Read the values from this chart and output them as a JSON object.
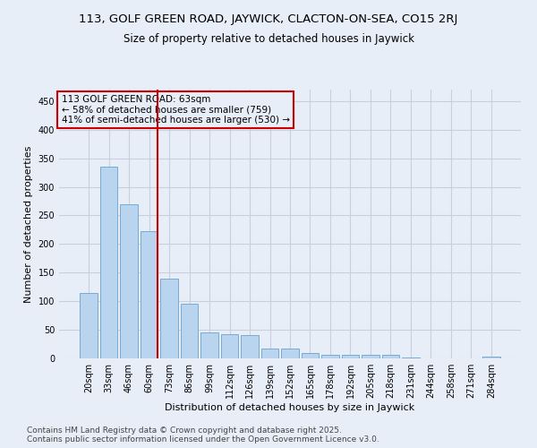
{
  "title1": "113, GOLF GREEN ROAD, JAYWICK, CLACTON-ON-SEA, CO15 2RJ",
  "title2": "Size of property relative to detached houses in Jaywick",
  "xlabel": "Distribution of detached houses by size in Jaywick",
  "ylabel": "Number of detached properties",
  "categories": [
    "20sqm",
    "33sqm",
    "46sqm",
    "60sqm",
    "73sqm",
    "86sqm",
    "99sqm",
    "112sqm",
    "126sqm",
    "139sqm",
    "152sqm",
    "165sqm",
    "178sqm",
    "192sqm",
    "205sqm",
    "218sqm",
    "231sqm",
    "244sqm",
    "258sqm",
    "271sqm",
    "284sqm"
  ],
  "values": [
    115,
    335,
    270,
    222,
    140,
    95,
    45,
    43,
    40,
    17,
    17,
    10,
    7,
    6,
    6,
    7,
    2,
    0,
    0,
    0,
    3
  ],
  "bar_color": "#b8d4ee",
  "bar_edge_color": "#7aaad0",
  "vline_color": "#cc0000",
  "annotation_text": "113 GOLF GREEN ROAD: 63sqm\n← 58% of detached houses are smaller (759)\n41% of semi-detached houses are larger (530) →",
  "annotation_box_color": "#cc0000",
  "ylim": [
    0,
    470
  ],
  "yticks": [
    0,
    50,
    100,
    150,
    200,
    250,
    300,
    350,
    400,
    450
  ],
  "background_color": "#e8eef8",
  "grid_color": "#c8d0e0",
  "footer1": "Contains HM Land Registry data © Crown copyright and database right 2025.",
  "footer2": "Contains public sector information licensed under the Open Government Licence v3.0.",
  "title1_fontsize": 9.5,
  "title2_fontsize": 8.5,
  "xlabel_fontsize": 8,
  "ylabel_fontsize": 8,
  "tick_fontsize": 7,
  "footer_fontsize": 6.5,
  "annotation_fontsize": 7.5
}
